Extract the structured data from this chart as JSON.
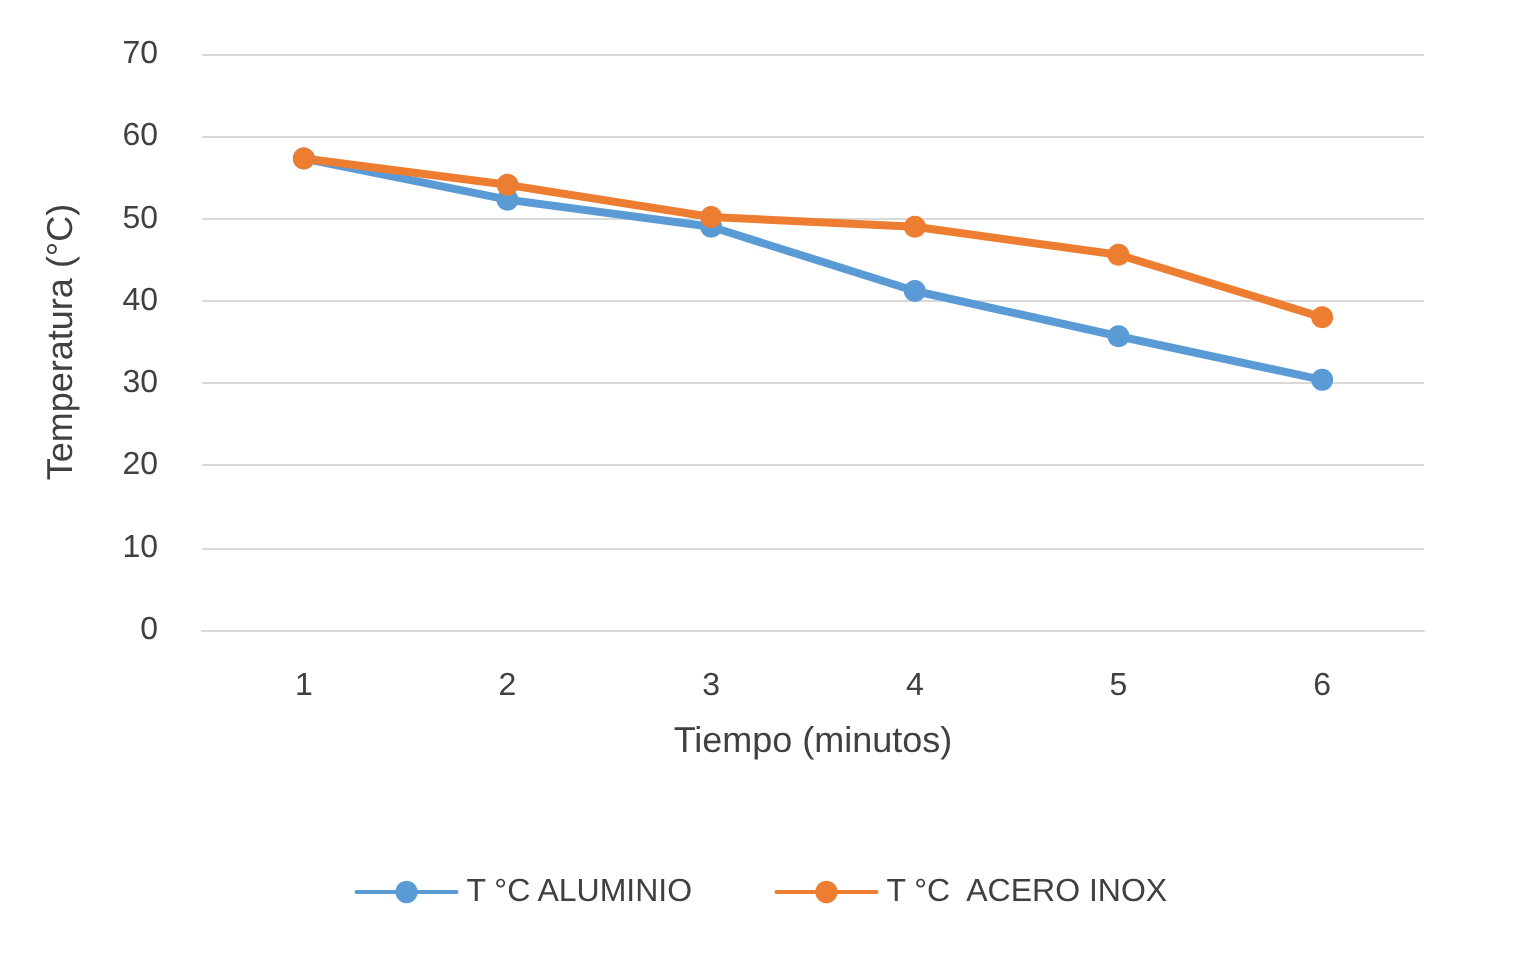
{
  "chart_data": {
    "type": "line",
    "xlabel": "Tiempo (minutos)",
    "ylabel": "Temperatura (°C)",
    "categories": [
      "1",
      "2",
      "3",
      "4",
      "5",
      "6"
    ],
    "series": [
      {
        "name": "T °C ALUMINIO",
        "color": "#5b9bd5",
        "values": [
          57.3,
          52.3,
          49.0,
          41.2,
          35.7,
          30.4
        ]
      },
      {
        "name": "T °C  ACERO INOX",
        "color": "#ed7d31",
        "values": [
          57.3,
          54.1,
          50.2,
          49.0,
          45.6,
          38.0
        ]
      }
    ],
    "ylim": [
      0,
      70
    ],
    "yticks": [
      0,
      10,
      20,
      30,
      40,
      50,
      60,
      70
    ],
    "grid": "y",
    "legend": "bottom",
    "marker": "circle",
    "line_style": "solid"
  }
}
